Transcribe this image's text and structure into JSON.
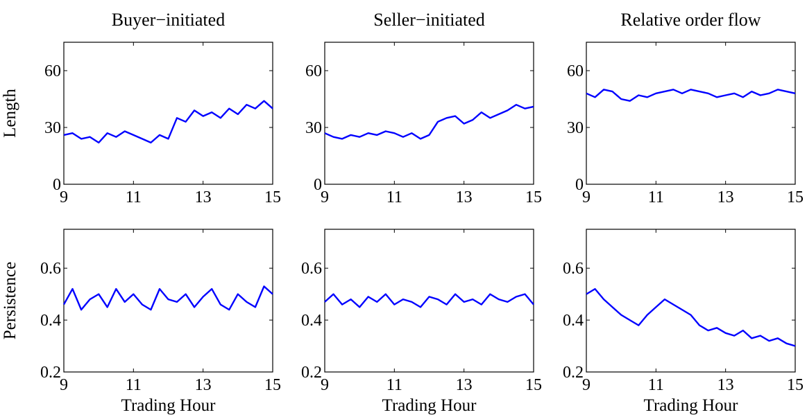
{
  "chart_data": [
    {
      "id": "buyer-length",
      "type": "line",
      "title": "Buyer−initiated",
      "ylabel": "Length",
      "xlabel": "",
      "xlim": [
        9,
        15
      ],
      "ylim": [
        0,
        75
      ],
      "xticks": [
        9,
        11,
        13,
        15
      ],
      "yticks": [
        0,
        30,
        60
      ],
      "series": [
        {
          "color": "#0000ff",
          "x": [
            9.0,
            9.25,
            9.5,
            9.75,
            10.0,
            10.25,
            10.5,
            10.75,
            11.0,
            11.25,
            11.5,
            11.75,
            12.0,
            12.25,
            12.5,
            12.75,
            13.0,
            13.25,
            13.5,
            13.75,
            14.0,
            14.25,
            14.5,
            14.75,
            15.0
          ],
          "y": [
            26,
            27,
            24,
            25,
            22,
            27,
            25,
            28,
            26,
            24,
            22,
            26,
            24,
            35,
            33,
            39,
            36,
            38,
            35,
            40,
            37,
            42,
            40,
            44,
            40
          ]
        }
      ]
    },
    {
      "id": "seller-length",
      "type": "line",
      "title": "Seller−initiated",
      "ylabel": "",
      "xlabel": "",
      "xlim": [
        9,
        15
      ],
      "ylim": [
        0,
        75
      ],
      "xticks": [
        9,
        11,
        13,
        15
      ],
      "yticks": [
        0,
        30,
        60
      ],
      "series": [
        {
          "color": "#0000ff",
          "x": [
            9.0,
            9.25,
            9.5,
            9.75,
            10.0,
            10.25,
            10.5,
            10.75,
            11.0,
            11.25,
            11.5,
            11.75,
            12.0,
            12.25,
            12.5,
            12.75,
            13.0,
            13.25,
            13.5,
            13.75,
            14.0,
            14.25,
            14.5,
            14.75,
            15.0
          ],
          "y": [
            27,
            25,
            24,
            26,
            25,
            27,
            26,
            28,
            27,
            25,
            27,
            24,
            26,
            33,
            35,
            36,
            32,
            34,
            38,
            35,
            37,
            39,
            42,
            40,
            41
          ]
        }
      ]
    },
    {
      "id": "relative-length",
      "type": "line",
      "title": "Relative order flow",
      "ylabel": "",
      "xlabel": "",
      "xlim": [
        9,
        15
      ],
      "ylim": [
        0,
        75
      ],
      "xticks": [
        9,
        11,
        13,
        15
      ],
      "yticks": [
        0,
        30,
        60
      ],
      "series": [
        {
          "color": "#0000ff",
          "x": [
            9.0,
            9.25,
            9.5,
            9.75,
            10.0,
            10.25,
            10.5,
            10.75,
            11.0,
            11.25,
            11.5,
            11.75,
            12.0,
            12.25,
            12.5,
            12.75,
            13.0,
            13.25,
            13.5,
            13.75,
            14.0,
            14.25,
            14.5,
            14.75,
            15.0
          ],
          "y": [
            48,
            46,
            50,
            49,
            45,
            44,
            47,
            46,
            48,
            49,
            50,
            48,
            50,
            49,
            48,
            46,
            47,
            48,
            46,
            49,
            47,
            48,
            50,
            49,
            48
          ]
        }
      ]
    },
    {
      "id": "buyer-persistence",
      "type": "line",
      "title": "",
      "ylabel": "Persistence",
      "xlabel": "Trading Hour",
      "xlim": [
        9,
        15
      ],
      "ylim": [
        0.2,
        0.75
      ],
      "xticks": [
        9,
        11,
        13,
        15
      ],
      "yticks": [
        0.2,
        0.4,
        0.6
      ],
      "series": [
        {
          "color": "#0000ff",
          "x": [
            9.0,
            9.25,
            9.5,
            9.75,
            10.0,
            10.25,
            10.5,
            10.75,
            11.0,
            11.25,
            11.5,
            11.75,
            12.0,
            12.25,
            12.5,
            12.75,
            13.0,
            13.25,
            13.5,
            13.75,
            14.0,
            14.25,
            14.5,
            14.75,
            15.0
          ],
          "y": [
            0.46,
            0.52,
            0.44,
            0.48,
            0.5,
            0.45,
            0.52,
            0.47,
            0.5,
            0.46,
            0.44,
            0.52,
            0.48,
            0.47,
            0.5,
            0.45,
            0.49,
            0.52,
            0.46,
            0.44,
            0.5,
            0.47,
            0.45,
            0.53,
            0.5
          ]
        }
      ]
    },
    {
      "id": "seller-persistence",
      "type": "line",
      "title": "",
      "ylabel": "",
      "xlabel": "Trading Hour",
      "xlim": [
        9,
        15
      ],
      "ylim": [
        0.2,
        0.75
      ],
      "xticks": [
        9,
        11,
        13,
        15
      ],
      "yticks": [
        0.2,
        0.4,
        0.6
      ],
      "series": [
        {
          "color": "#0000ff",
          "x": [
            9.0,
            9.25,
            9.5,
            9.75,
            10.0,
            10.25,
            10.5,
            10.75,
            11.0,
            11.25,
            11.5,
            11.75,
            12.0,
            12.25,
            12.5,
            12.75,
            13.0,
            13.25,
            13.5,
            13.75,
            14.0,
            14.25,
            14.5,
            14.75,
            15.0
          ],
          "y": [
            0.47,
            0.5,
            0.46,
            0.48,
            0.45,
            0.49,
            0.47,
            0.5,
            0.46,
            0.48,
            0.47,
            0.45,
            0.49,
            0.48,
            0.46,
            0.5,
            0.47,
            0.48,
            0.46,
            0.5,
            0.48,
            0.47,
            0.49,
            0.5,
            0.46
          ]
        }
      ]
    },
    {
      "id": "relative-persistence",
      "type": "line",
      "title": "",
      "ylabel": "",
      "xlabel": "Trading Hour",
      "xlim": [
        9,
        15
      ],
      "ylim": [
        0.2,
        0.75
      ],
      "xticks": [
        9,
        11,
        13,
        15
      ],
      "yticks": [
        0.2,
        0.4,
        0.6
      ],
      "series": [
        {
          "color": "#0000ff",
          "x": [
            9.0,
            9.25,
            9.5,
            9.75,
            10.0,
            10.25,
            10.5,
            10.75,
            11.0,
            11.25,
            11.5,
            11.75,
            12.0,
            12.25,
            12.5,
            12.75,
            13.0,
            13.25,
            13.5,
            13.75,
            14.0,
            14.25,
            14.5,
            14.75,
            15.0
          ],
          "y": [
            0.5,
            0.52,
            0.48,
            0.45,
            0.42,
            0.4,
            0.38,
            0.42,
            0.45,
            0.48,
            0.46,
            0.44,
            0.42,
            0.38,
            0.36,
            0.37,
            0.35,
            0.34,
            0.36,
            0.33,
            0.34,
            0.32,
            0.33,
            0.31,
            0.3
          ]
        }
      ]
    }
  ]
}
